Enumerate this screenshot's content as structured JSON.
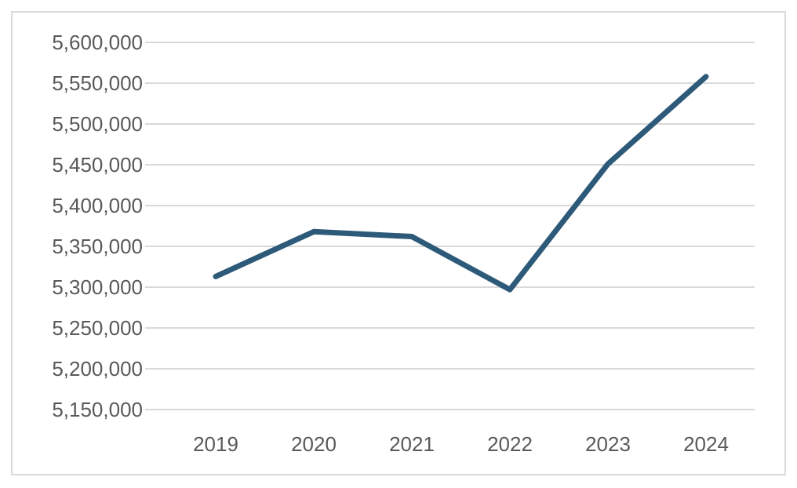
{
  "chart_data": {
    "type": "line",
    "title": "",
    "xlabel": "",
    "ylabel": "",
    "categories": [
      "2019",
      "2020",
      "2021",
      "2022",
      "2023",
      "2024"
    ],
    "series": [
      {
        "values": [
          5313000,
          5368000,
          5362000,
          5297000,
          5451000,
          5558000
        ]
      }
    ],
    "ylim": [
      5150000,
      5600000
    ],
    "y_ticks": [
      "5,150,000",
      "5,200,000",
      "5,250,000",
      "5,300,000",
      "5,350,000",
      "5,400,000",
      "5,450,000",
      "5,500,000",
      "5,550,000",
      "5,600,000"
    ],
    "grid": true,
    "legend": "none",
    "colors": {
      "line": "#2e5a7a",
      "grid": "#d9d9d9",
      "text": "#595959",
      "border": "#d9d9d9"
    }
  }
}
